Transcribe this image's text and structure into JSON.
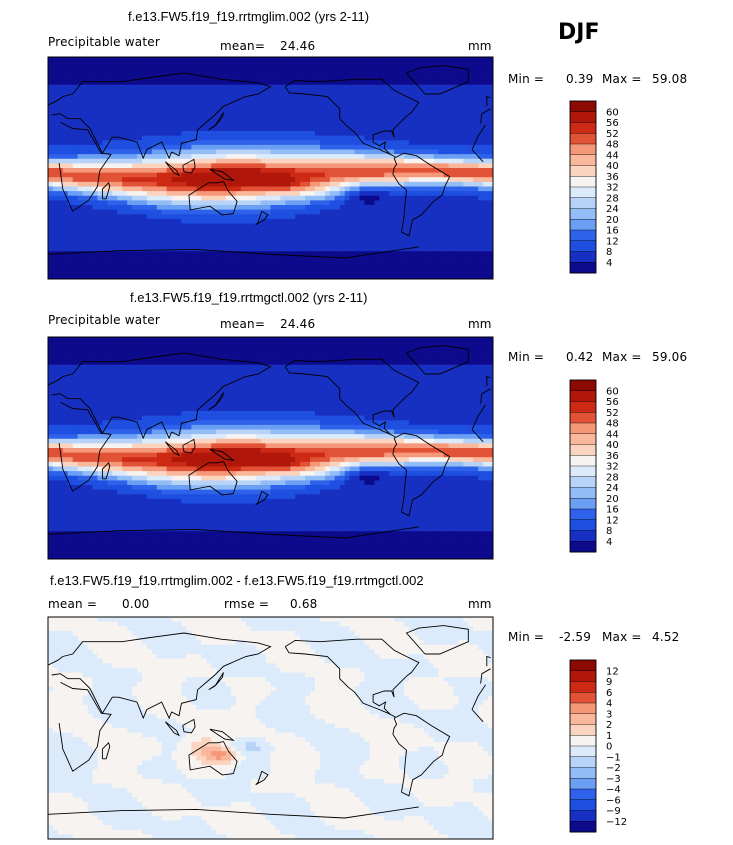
{
  "season": "DJF",
  "colors": {
    "full": [
      "#0d0a8c",
      "#1730c2",
      "#1f4fe0",
      "#2e62ea",
      "#4680f0",
      "#6b9ff3",
      "#93bdf6",
      "#b8d3f8",
      "#dcebfb",
      "#f7f3f0",
      "#fbd4c0",
      "#f9b79b",
      "#f5987a",
      "#ef7658",
      "#e25236",
      "#cc2a15",
      "#b0160a",
      "#8d0a04"
    ],
    "diff": [
      "#0d0a8c",
      "#1730c2",
      "#1f4fe0",
      "#2e62ea",
      "#4680f0",
      "#6b9ff3",
      "#93bdf6",
      "#b8d3f8",
      "#dcebfb",
      "#f7f3f0",
      "#fbd4c0",
      "#f9b79b",
      "#f5987a",
      "#ef7658",
      "#e25236",
      "#cc2a15",
      "#b0160a",
      "#8d0a04"
    ]
  },
  "panels": [
    {
      "title": "f.e13.FW5.f19_f19.rrtmglim.002 (yrs 2-11)",
      "variable": "Precipitable water",
      "stat1_label": "mean=",
      "stat1_value": "24.46",
      "units": "mm",
      "min_label": "Min =",
      "min_value": "0.39",
      "max_label": "Max =",
      "max_value": "59.08"
    },
    {
      "title": "f.e13.FW5.f19_f19.rrtmgctl.002 (yrs 2-11)",
      "variable": "Precipitable water",
      "stat1_label": "mean=",
      "stat1_value": "24.46",
      "units": "mm",
      "min_label": "Min =",
      "min_value": "0.42",
      "max_label": "Max =",
      "max_value": "59.06"
    },
    {
      "title": "f.e13.FW5.f19_f19.rrtmglim.002 - f.e13.FW5.f19_f19.rrtmgctl.002",
      "stat1_label": "mean =",
      "stat1_value": "0.00",
      "stat2_label": "rmse =",
      "stat2_value": "0.68",
      "units": "mm",
      "min_label": "Min =",
      "min_value": "-2.59",
      "max_label": "Max =",
      "max_value": "4.52"
    }
  ],
  "chart_data": [
    {
      "type": "heatmap",
      "title": "f.e13.FW5.f19_f19.rrtmglim.002 (yrs 2-11)",
      "variable": "Precipitable water",
      "units": "mm",
      "mean": 24.46,
      "min": 0.39,
      "max": 59.08,
      "colorbar_levels": [
        60,
        56,
        52,
        48,
        44,
        40,
        36,
        32,
        28,
        24,
        20,
        16,
        12,
        8,
        4
      ]
    },
    {
      "type": "heatmap",
      "title": "f.e13.FW5.f19_f19.rrtmgctl.002 (yrs 2-11)",
      "variable": "Precipitable water",
      "units": "mm",
      "mean": 24.46,
      "min": 0.42,
      "max": 59.06,
      "colorbar_levels": [
        60,
        56,
        52,
        48,
        44,
        40,
        36,
        32,
        28,
        24,
        20,
        16,
        12,
        8,
        4
      ]
    },
    {
      "type": "heatmap",
      "title": "f.e13.FW5.f19_f19.rrtmglim.002 - f.e13.FW5.f19_f19.rrtmgctl.002",
      "units": "mm",
      "mean": 0.0,
      "rmse": 0.68,
      "min": -2.59,
      "max": 4.52,
      "colorbar_levels": [
        12,
        9,
        6,
        4,
        3,
        2,
        1,
        0,
        -1,
        -2,
        -3,
        -4,
        -6,
        -9,
        -12
      ]
    }
  ]
}
